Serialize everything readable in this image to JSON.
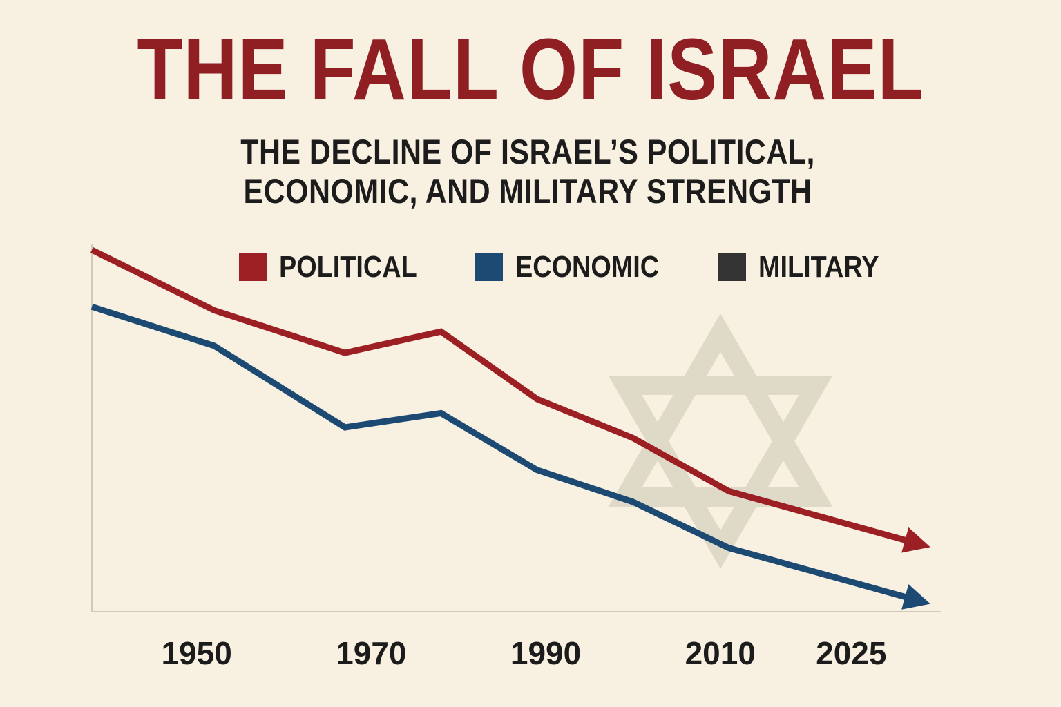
{
  "title": "THE FALL OF ISRAEL",
  "subtitle_line1": "THE DECLINE OF ISRAEL’S POLITICAL,",
  "subtitle_line2": "ECONOMIC, AND MILITARY STRENGTH",
  "background_icon": "star-of-david-icon",
  "chart_data": {
    "type": "line",
    "title": "THE FALL OF ISRAEL",
    "subtitle": "THE DECLINE OF ISRAEL’S POLITICAL, ECONOMIC, AND MILITARY STRENGTH",
    "xlabel": "",
    "ylabel": "",
    "x_ticks": [
      "1950",
      "1970",
      "1990",
      "2010",
      "2025"
    ],
    "xlim": [
      1938,
      2034
    ],
    "ylim": [
      0,
      100
    ],
    "grid": false,
    "legend_position": "top",
    "legend": [
      {
        "label": "POLITICAL",
        "color": "#9c1f24"
      },
      {
        "label": "ECONOMIC",
        "color": "#1d4a73"
      },
      {
        "label": "MILITARY",
        "color": "#333333"
      }
    ],
    "series": [
      {
        "name": "POLITICAL",
        "color": "#9c1f24",
        "x": [
          1938,
          1952,
          1967,
          1978,
          1989,
          2000,
          2011,
          2033
        ],
        "y": [
          100,
          83,
          71,
          77,
          58,
          47,
          32,
          17
        ]
      },
      {
        "name": "ECONOMIC",
        "color": "#1d4a73",
        "x": [
          1938,
          1952,
          1967,
          1978,
          1989,
          2000,
          2011,
          2033
        ],
        "y": [
          84,
          73,
          50,
          54,
          38,
          29,
          16,
          1
        ]
      },
      {
        "name": "MILITARY",
        "color": "#333333",
        "x": [],
        "y": []
      }
    ]
  }
}
